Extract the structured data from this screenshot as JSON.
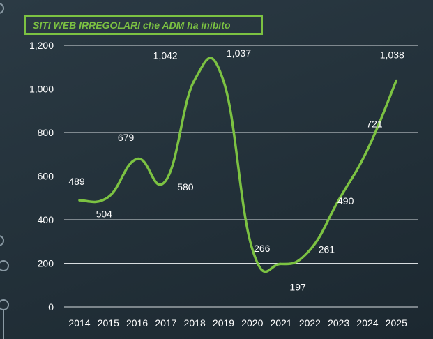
{
  "chart_data": {
    "type": "line",
    "title": "SITI WEB IRREGOLARI che ADM ha inibito",
    "categories": [
      "2014",
      "2015",
      "2016",
      "2017",
      "2018",
      "2019",
      "2020",
      "2021",
      "2022",
      "2023",
      "2024",
      "2025"
    ],
    "series": [
      {
        "values": [
          489,
          504,
          679,
          580,
          1042,
          1037,
          266,
          197,
          261,
          490,
          721,
          1038
        ]
      }
    ],
    "data_labels": [
      "489",
      "504",
      "679",
      "580",
      "1,042",
      "1,037",
      "266",
      "197",
      "261",
      "490",
      "721",
      "1,038"
    ],
    "yticks": [
      "0",
      "200",
      "400",
      "600",
      "800",
      "1,000",
      "1,200"
    ],
    "ylim": [
      0,
      1200
    ],
    "grid": true,
    "smooth": true,
    "colors": {
      "line": "#7cc242",
      "title": "#7cc242",
      "text": "#ffffff",
      "grid": "#d8dde0"
    }
  }
}
